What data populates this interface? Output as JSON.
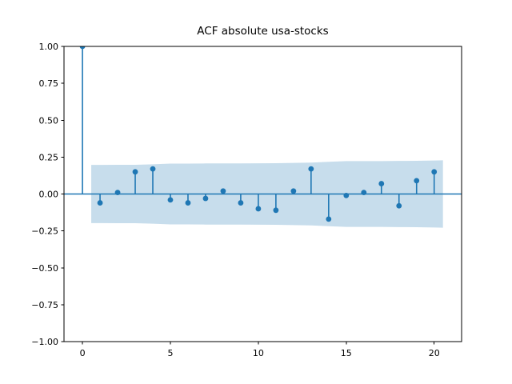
{
  "figure": {
    "background": "#ffffff"
  },
  "chart_data": {
    "type": "scatter",
    "variant": "acf-stem-plot",
    "title": "ACF absolute usa-stocks",
    "xlabel": "",
    "ylabel": "",
    "grid": false,
    "legend": false,
    "x": [
      0,
      1,
      2,
      3,
      4,
      5,
      6,
      7,
      8,
      9,
      10,
      11,
      12,
      13,
      14,
      15,
      16,
      17,
      18,
      19,
      20
    ],
    "values": [
      1.0,
      -0.06,
      0.01,
      0.15,
      0.17,
      -0.04,
      -0.06,
      -0.03,
      0.02,
      -0.06,
      -0.1,
      -0.11,
      0.02,
      0.17,
      -0.17,
      -0.01,
      0.01,
      0.07,
      -0.08,
      0.09,
      0.15
    ],
    "confidence_band": {
      "x": [
        0.5,
        1,
        2,
        3,
        4,
        5,
        6,
        7,
        8,
        9,
        10,
        11,
        12,
        13,
        14,
        15,
        16,
        17,
        18,
        19,
        20,
        20.5
      ],
      "upper": [
        0.197,
        0.197,
        0.198,
        0.198,
        0.201,
        0.206,
        0.206,
        0.207,
        0.207,
        0.207,
        0.208,
        0.209,
        0.211,
        0.213,
        0.218,
        0.223,
        0.223,
        0.223,
        0.224,
        0.225,
        0.227,
        0.228
      ],
      "lower": [
        -0.197,
        -0.197,
        -0.198,
        -0.198,
        -0.201,
        -0.206,
        -0.206,
        -0.207,
        -0.207,
        -0.207,
        -0.208,
        -0.209,
        -0.211,
        -0.213,
        -0.218,
        -0.223,
        -0.223,
        -0.223,
        -0.224,
        -0.225,
        -0.227,
        -0.228
      ]
    },
    "xlim": [
      -1.05,
      21.56
    ],
    "ylim": [
      -1.0,
      1.0
    ],
    "xticks": {
      "values": [
        0,
        5,
        10,
        15,
        20
      ],
      "labels": [
        "0",
        "5",
        "10",
        "15",
        "20"
      ]
    },
    "yticks": {
      "values": [
        1.0,
        0.75,
        0.5,
        0.25,
        0.0,
        -0.25,
        -0.5,
        -0.75,
        -1.0
      ],
      "labels": [
        "1.00",
        "0.75",
        "0.50",
        "0.25",
        "0.00",
        "−0.25",
        "−0.50",
        "−0.75",
        "−1.00"
      ]
    },
    "colors": {
      "stem": "#1f77b4",
      "marker": "#1f77b4",
      "zero_line": "#1f77b4",
      "band_fill": "#1f77b4",
      "band_alpha": 0.25,
      "spine": "#000000",
      "text": "#000000",
      "background": "#ffffff"
    }
  }
}
